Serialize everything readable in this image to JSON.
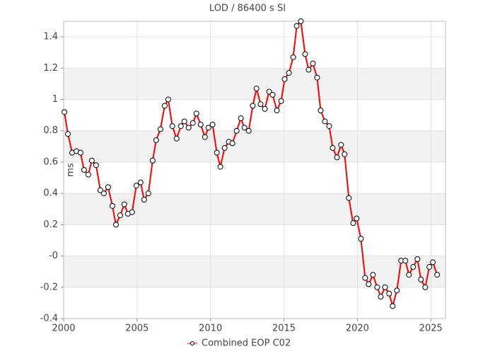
{
  "chart_data": {
    "type": "line",
    "title": "LOD / 86400 s SI",
    "y_label": "ms",
    "x": [
      2000.05,
      2000.29,
      2000.58,
      2000.87,
      2001.15,
      2001.39,
      2001.68,
      2001.92,
      2002.21,
      2002.5,
      2002.74,
      2003.03,
      2003.32,
      2003.56,
      2003.85,
      2004.13,
      2004.38,
      2004.66,
      2004.95,
      2005.24,
      2005.48,
      2005.77,
      2006.06,
      2006.3,
      2006.59,
      2006.88,
      2007.12,
      2007.4,
      2007.69,
      2007.98,
      2008.22,
      2008.51,
      2008.8,
      2009.04,
      2009.33,
      2009.62,
      2009.86,
      2010.14,
      2010.43,
      2010.67,
      2010.96,
      2011.25,
      2011.49,
      2011.78,
      2012.07,
      2012.31,
      2012.6,
      2012.88,
      2013.13,
      2013.41,
      2013.7,
      2013.99,
      2014.23,
      2014.52,
      2014.81,
      2015.05,
      2015.34,
      2015.63,
      2015.87,
      2016.15,
      2016.44,
      2016.68,
      2016.97,
      2017.26,
      2017.5,
      2017.79,
      2018.08,
      2018.32,
      2018.61,
      2018.89,
      2019.13,
      2019.42,
      2019.71,
      2019.95,
      2020.24,
      2020.53,
      2020.77,
      2021.06,
      2021.35,
      2021.59,
      2021.88,
      2022.16,
      2022.4,
      2022.69,
      2022.98,
      2023.27,
      2023.51,
      2023.8,
      2024.09,
      2024.33,
      2024.62,
      2024.9,
      2025.14,
      2025.43
    ],
    "series": [
      {
        "name": "Combined EOP C02",
        "color": "#ff0000",
        "values": [
          0.92,
          0.78,
          0.66,
          0.67,
          0.66,
          0.55,
          0.52,
          0.61,
          0.58,
          0.42,
          0.4,
          0.44,
          0.32,
          0.2,
          0.26,
          0.33,
          0.27,
          0.28,
          0.45,
          0.47,
          0.36,
          0.4,
          0.61,
          0.74,
          0.81,
          0.96,
          1.0,
          0.83,
          0.75,
          0.83,
          0.86,
          0.82,
          0.85,
          0.91,
          0.84,
          0.76,
          0.82,
          0.84,
          0.66,
          0.57,
          0.69,
          0.73,
          0.72,
          0.8,
          0.88,
          0.82,
          0.8,
          0.96,
          1.07,
          0.97,
          0.94,
          1.05,
          1.03,
          0.93,
          0.99,
          1.13,
          1.17,
          1.27,
          1.47,
          1.5,
          1.29,
          1.19,
          1.23,
          1.14,
          0.93,
          0.86,
          0.83,
          0.69,
          0.63,
          0.71,
          0.65,
          0.37,
          0.21,
          0.24,
          0.11,
          -0.14,
          -0.18,
          -0.12,
          -0.2,
          -0.26,
          -0.2,
          -0.24,
          -0.32,
          -0.22,
          -0.03,
          -0.03,
          -0.12,
          -0.07,
          -0.02,
          -0.15,
          -0.2,
          -0.07,
          -0.04,
          -0.12
        ]
      }
    ],
    "xlim": [
      2000,
      2026
    ],
    "xticks": [
      2000,
      2005,
      2010,
      2015,
      2020,
      2025
    ],
    "ylim": [
      -0.4,
      1.5
    ],
    "yticks": [
      -0.4,
      -0.2,
      {
        "value": 0,
        "label": "-0"
      },
      0.2,
      0.4,
      0.6,
      0.8,
      1,
      1.2,
      1.4
    ],
    "grid": true,
    "legend": "bottom"
  }
}
